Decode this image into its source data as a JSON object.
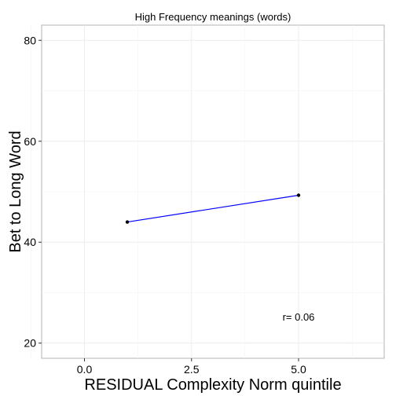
{
  "chart_data": {
    "type": "line",
    "title": "High Frequency meanings (words)",
    "xlabel": "RESIDUAL Complexity Norm quintile",
    "ylabel": "Bet to Long Word",
    "xlim": [
      -1,
      7
    ],
    "ylim": [
      17,
      83
    ],
    "x_ticks": [
      0,
      2.5,
      5
    ],
    "x_tick_labels": [
      "0.0",
      "2.5",
      "5.0"
    ],
    "y_ticks": [
      20,
      40,
      60,
      80
    ],
    "y_tick_labels": [
      "20",
      "40",
      "60",
      "80"
    ],
    "grid": true,
    "series": [
      {
        "x": [
          1,
          5
        ],
        "y": [
          44.0,
          49.3
        ],
        "color": "#0000ff",
        "point_color": "#000000"
      }
    ],
    "annotations": [
      {
        "text": "r= 0.06",
        "x": 5,
        "y": 24.5
      }
    ]
  }
}
